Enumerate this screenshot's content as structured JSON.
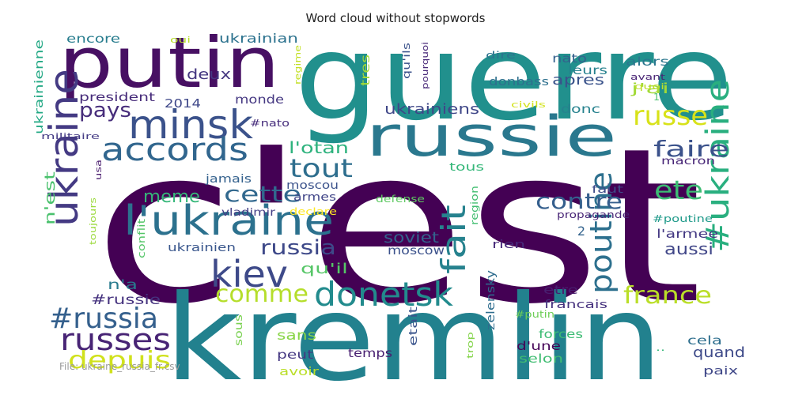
{
  "chart_data": {
    "type": "wordcloud",
    "title": "Word cloud without stopwords",
    "words": [
      {
        "text": "c'est",
        "weight": 1.0,
        "color": "#440154"
      },
      {
        "text": "guerre",
        "weight": 0.74,
        "color": "#21908d"
      },
      {
        "text": "kremlin",
        "weight": 0.72,
        "color": "#22818e"
      },
      {
        "text": "putin",
        "weight": 0.52,
        "color": "#471063"
      },
      {
        "text": "russie",
        "weight": 0.44,
        "color": "#2a788e"
      },
      {
        "text": "ukraine",
        "weight": 0.36,
        "color": "#443a83"
      },
      {
        "text": "l'ukraine",
        "weight": 0.3,
        "color": "#2c718e"
      },
      {
        "text": "minsk",
        "weight": 0.27,
        "color": "#3b528b"
      },
      {
        "text": "kiev",
        "weight": 0.25,
        "color": "#3e4a89"
      },
      {
        "text": "#ukraine",
        "weight": 0.24,
        "color": "#29af7f"
      },
      {
        "text": "accords",
        "weight": 0.22,
        "color": "#31668e"
      },
      {
        "text": "donetsk",
        "weight": 0.22,
        "color": "#228b8d"
      },
      {
        "text": "poutine",
        "weight": 0.21,
        "color": "#2d708e"
      },
      {
        "text": "fait",
        "weight": 0.2,
        "color": "#26828e"
      },
      {
        "text": "#russia",
        "weight": 0.19,
        "color": "#35608d"
      },
      {
        "text": "russes",
        "weight": 0.19,
        "color": "#482475"
      },
      {
        "text": "russe",
        "weight": 0.18,
        "color": "#d8e219"
      },
      {
        "text": "tout",
        "weight": 0.17,
        "color": "#2e6e8e"
      },
      {
        "text": "ete",
        "weight": 0.17,
        "color": "#3dbc74"
      },
      {
        "text": "depuis",
        "weight": 0.16,
        "color": "#d0e11c"
      },
      {
        "text": "france",
        "weight": 0.15,
        "color": "#bade28"
      },
      {
        "text": "comme",
        "weight": 0.15,
        "color": "#b5de2b"
      },
      {
        "text": "faire",
        "weight": 0.14,
        "color": "#3b528b"
      },
      {
        "text": "contre",
        "weight": 0.14,
        "color": "#355f8d"
      },
      {
        "text": "cette",
        "weight": 0.14,
        "color": "#31688e"
      },
      {
        "text": "russia",
        "weight": 0.13,
        "color": "#3e4989"
      },
      {
        "text": "pays",
        "weight": 0.13,
        "color": "#472d7b"
      },
      {
        "text": "meme",
        "weight": 0.12,
        "color": "#35b779"
      },
      {
        "text": "l'otan",
        "weight": 0.11,
        "color": "#2db27d"
      },
      {
        "text": "soviet",
        "weight": 0.1,
        "color": "#33638d"
      },
      {
        "text": "aussi",
        "weight": 0.1,
        "color": "#404688"
      },
      {
        "text": "ukrainiens",
        "weight": 0.1,
        "color": "#3f4788"
      },
      {
        "text": "apres",
        "weight": 0.1,
        "color": "#3a538b"
      },
      {
        "text": "qu'il",
        "weight": 0.1,
        "color": "#56c667"
      },
      {
        "text": "deux",
        "weight": 0.1,
        "color": "#453781"
      },
      {
        "text": "j'ai",
        "weight": 0.1,
        "color": "#a2da37"
      },
      {
        "text": "#russie",
        "weight": 0.09,
        "color": "#46337f"
      },
      {
        "text": "n'est",
        "weight": 0.09,
        "color": "#4ac16d"
      },
      {
        "text": "n'a",
        "weight": 0.09,
        "color": "#297b8e"
      },
      {
        "text": "quand",
        "weight": 0.09,
        "color": "#3e4a89"
      },
      {
        "text": "sans",
        "weight": 0.09,
        "color": "#89d548"
      },
      {
        "text": "donbass",
        "weight": 0.08,
        "color": "#2d708e"
      },
      {
        "text": "etre",
        "weight": 0.08,
        "color": "#481f70"
      },
      {
        "text": "ukrainian",
        "weight": 0.08,
        "color": "#2c728e"
      },
      {
        "text": "encore",
        "weight": 0.08,
        "color": "#287d8e"
      },
      {
        "text": "president",
        "weight": 0.07,
        "color": "#472c7a"
      },
      {
        "text": "monde",
        "weight": 0.07,
        "color": "#453882"
      },
      {
        "text": "2014",
        "weight": 0.07,
        "color": "#3f4889"
      },
      {
        "text": "alors",
        "weight": 0.07,
        "color": "#2a778e"
      },
      {
        "text": "leurs",
        "weight": 0.07,
        "color": "#26818e"
      },
      {
        "text": "nato",
        "weight": 0.07,
        "color": "#34618d"
      },
      {
        "text": "donc",
        "weight": 0.07,
        "color": "#26828e"
      },
      {
        "text": "moscow",
        "weight": 0.07,
        "color": "#3b518b"
      },
      {
        "text": "tres",
        "weight": 0.07,
        "color": "#a5db36"
      },
      {
        "text": "l'armee",
        "weight": 0.07,
        "color": "#443983"
      },
      {
        "text": "macron",
        "weight": 0.06,
        "color": "#482677"
      },
      {
        "text": "cela",
        "weight": 0.06,
        "color": "#2e6f8e"
      },
      {
        "text": "francais",
        "weight": 0.06,
        "color": "#46327e"
      },
      {
        "text": "selon",
        "weight": 0.06,
        "color": "#40bd72"
      },
      {
        "text": "paix",
        "weight": 0.06,
        "color": "#3f4788"
      },
      {
        "text": "d'une",
        "weight": 0.06,
        "color": "#450457"
      },
      {
        "text": "forces",
        "weight": 0.06,
        "color": "#3dbc74"
      },
      {
        "text": "etait",
        "weight": 0.06,
        "color": "#3a548c"
      },
      {
        "text": "temps",
        "weight": 0.06,
        "color": "#482071"
      },
      {
        "text": "peut",
        "weight": 0.06,
        "color": "#453882"
      },
      {
        "text": "avoir",
        "weight": 0.06,
        "color": "#bade28"
      },
      {
        "text": "zelensky",
        "weight": 0.06,
        "color": "#2e6d8e"
      },
      {
        "text": "ukrainienne",
        "weight": 0.06,
        "color": "#22a884"
      },
      {
        "text": "moscou",
        "weight": 0.05,
        "color": "#3b528b"
      },
      {
        "text": "tous",
        "weight": 0.05,
        "color": "#35b779"
      },
      {
        "text": "armes",
        "weight": 0.05,
        "color": "#404588"
      },
      {
        "text": "jamais",
        "weight": 0.05,
        "color": "#34618d"
      },
      {
        "text": "rien",
        "weight": 0.05,
        "color": "#472a7a"
      },
      {
        "text": "ukrainien",
        "weight": 0.05,
        "color": "#39568c"
      },
      {
        "text": "faut",
        "weight": 0.05,
        "color": "#3e4c8a"
      },
      {
        "text": "vladimir",
        "weight": 0.05,
        "color": "#433e85"
      },
      {
        "text": "sous",
        "weight": 0.05,
        "color": "#7ad151"
      },
      {
        "text": "militaire",
        "weight": 0.04,
        "color": "#443b84"
      },
      {
        "text": "propagande",
        "weight": 0.04,
        "color": "#482576"
      },
      {
        "text": "#poutine",
        "weight": 0.04,
        "color": "#1f9a8a"
      },
      {
        "text": "region",
        "weight": 0.04,
        "color": "#42be71"
      },
      {
        "text": "defense",
        "weight": 0.04,
        "color": "#5ec962"
      },
      {
        "text": "declare",
        "weight": 0.04,
        "color": "#fde725"
      },
      {
        "text": "conflit",
        "weight": 0.04,
        "color": "#54c568"
      },
      {
        "text": "toujours",
        "weight": 0.04,
        "color": "#9bd93c"
      },
      {
        "text": "usa",
        "weight": 0.04,
        "color": "#481b6d"
      },
      {
        "text": "qu'ils",
        "weight": 0.04,
        "color": "#3b528b"
      },
      {
        "text": "pourquoi",
        "weight": 0.04,
        "color": "#482878"
      },
      {
        "text": "dire",
        "weight": 0.04,
        "color": "#2c738e"
      },
      {
        "text": "regime",
        "weight": 0.04,
        "color": "#c2df23"
      },
      {
        "text": "oui",
        "weight": 0.04,
        "color": "#b8de29"
      },
      {
        "text": "avant",
        "weight": 0.04,
        "color": "#482374"
      },
      {
        "text": "quoi",
        "weight": 0.04,
        "color": "#bddf26"
      },
      {
        "text": "civils",
        "weight": 0.04,
        "color": "#d2e21b"
      },
      {
        "text": "#nato",
        "weight": 0.04,
        "color": "#472e7c"
      },
      {
        "text": "#putin",
        "weight": 0.04,
        "color": "#6ece58"
      },
      {
        "text": "trop",
        "weight": 0.04,
        "color": "#84d44b"
      },
      {
        "text": "1",
        "weight": 0.04,
        "color": "#4ac16d"
      },
      {
        "text": "2",
        "weight": 0.05,
        "color": "#33638d"
      },
      {
        "text": "..",
        "weight": 0.04,
        "color": "#35b779"
      }
    ]
  },
  "footer": {
    "source_label": "File: ukraine_russia_fr.csv"
  }
}
